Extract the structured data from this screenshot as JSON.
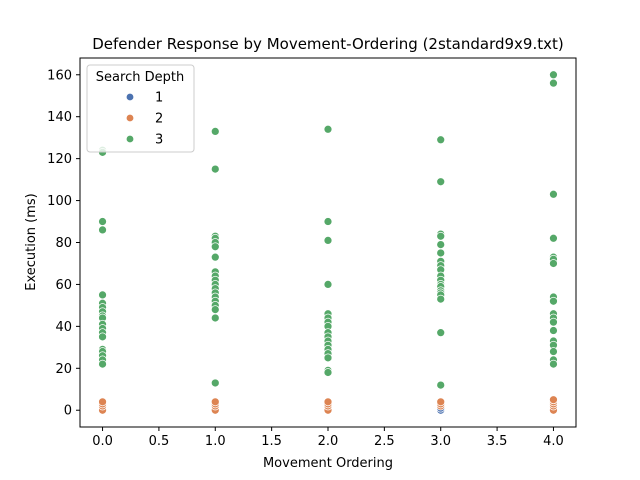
{
  "chart_data": {
    "type": "scatter",
    "title": "Defender Response by Movement-Ordering (2standard9x9.txt)",
    "xlabel": "Movement Ordering",
    "ylabel": "Execution (ms)",
    "xlim": [
      -0.2,
      4.2
    ],
    "ylim": [
      -8,
      168
    ],
    "x_ticks": [
      "0.0",
      "0.5",
      "1.0",
      "1.5",
      "2.0",
      "2.5",
      "3.0",
      "3.5",
      "4.0"
    ],
    "y_ticks": [
      "0",
      "20",
      "40",
      "60",
      "80",
      "100",
      "120",
      "140",
      "160"
    ],
    "grid": false,
    "legend": {
      "title": "Search Depth",
      "placement": "upper-left",
      "entries": [
        "1",
        "2",
        "3"
      ]
    },
    "series": [
      {
        "name": "1",
        "color": "#4c72b0",
        "points": [
          [
            0,
            0
          ],
          [
            1,
            0
          ],
          [
            2,
            0
          ],
          [
            3,
            0
          ],
          [
            3,
            1
          ],
          [
            4,
            0
          ]
        ]
      },
      {
        "name": "2",
        "color": "#dd8452",
        "points": [
          [
            0,
            0
          ],
          [
            0,
            2
          ],
          [
            0,
            3
          ],
          [
            0,
            4
          ],
          [
            1,
            0
          ],
          [
            1,
            2
          ],
          [
            1,
            3
          ],
          [
            1,
            4
          ],
          [
            2,
            0
          ],
          [
            2,
            2
          ],
          [
            2,
            3
          ],
          [
            2,
            4
          ],
          [
            3,
            2
          ],
          [
            3,
            3
          ],
          [
            3,
            4
          ],
          [
            4,
            0
          ],
          [
            4,
            2
          ],
          [
            4,
            3
          ],
          [
            4,
            4
          ],
          [
            4,
            5
          ]
        ]
      },
      {
        "name": "3",
        "color": "#55a868",
        "points": [
          [
            0,
            124
          ],
          [
            0,
            123
          ],
          [
            0,
            90
          ],
          [
            0,
            86
          ],
          [
            0,
            55
          ],
          [
            0,
            51
          ],
          [
            0,
            49
          ],
          [
            0,
            47
          ],
          [
            0,
            45
          ],
          [
            0,
            44
          ],
          [
            0,
            41
          ],
          [
            0,
            39
          ],
          [
            0,
            37
          ],
          [
            0,
            35
          ],
          [
            0,
            29
          ],
          [
            0,
            28
          ],
          [
            0,
            26
          ],
          [
            0,
            24
          ],
          [
            0,
            22
          ],
          [
            1,
            133
          ],
          [
            1,
            115
          ],
          [
            1,
            83
          ],
          [
            1,
            82
          ],
          [
            1,
            80
          ],
          [
            1,
            78
          ],
          [
            1,
            73
          ],
          [
            1,
            66
          ],
          [
            1,
            64
          ],
          [
            1,
            62
          ],
          [
            1,
            60
          ],
          [
            1,
            58
          ],
          [
            1,
            56
          ],
          [
            1,
            54
          ],
          [
            1,
            52
          ],
          [
            1,
            50
          ],
          [
            1,
            48
          ],
          [
            1,
            44
          ],
          [
            1,
            13
          ],
          [
            2,
            134
          ],
          [
            2,
            90
          ],
          [
            2,
            81
          ],
          [
            2,
            60
          ],
          [
            2,
            46
          ],
          [
            2,
            44
          ],
          [
            2,
            42
          ],
          [
            2,
            40
          ],
          [
            2,
            37
          ],
          [
            2,
            35
          ],
          [
            2,
            33
          ],
          [
            2,
            31
          ],
          [
            2,
            29
          ],
          [
            2,
            27
          ],
          [
            2,
            25
          ],
          [
            2,
            19
          ],
          [
            2,
            18
          ],
          [
            3,
            129
          ],
          [
            3,
            109
          ],
          [
            3,
            84
          ],
          [
            3,
            83
          ],
          [
            3,
            79
          ],
          [
            3,
            75
          ],
          [
            3,
            71
          ],
          [
            3,
            69
          ],
          [
            3,
            67
          ],
          [
            3,
            64
          ],
          [
            3,
            62
          ],
          [
            3,
            60
          ],
          [
            3,
            59
          ],
          [
            3,
            57
          ],
          [
            3,
            56
          ],
          [
            3,
            55
          ],
          [
            3,
            53
          ],
          [
            3,
            37
          ],
          [
            3,
            12
          ],
          [
            4,
            160
          ],
          [
            4,
            156
          ],
          [
            4,
            103
          ],
          [
            4,
            82
          ],
          [
            4,
            73
          ],
          [
            4,
            72
          ],
          [
            4,
            70
          ],
          [
            4,
            54
          ],
          [
            4,
            52
          ],
          [
            4,
            46
          ],
          [
            4,
            44
          ],
          [
            4,
            42
          ],
          [
            4,
            38
          ],
          [
            4,
            33
          ],
          [
            4,
            31
          ],
          [
            4,
            28
          ],
          [
            4,
            24
          ],
          [
            4,
            22
          ]
        ]
      }
    ]
  }
}
